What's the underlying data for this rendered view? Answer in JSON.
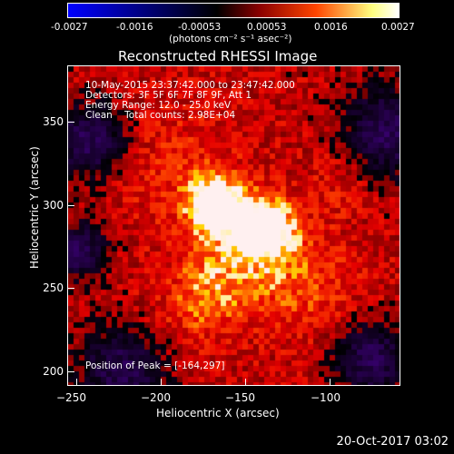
{
  "colorbar": {
    "ticks": [
      "-0.0027",
      "-0.0016",
      "-0.00053",
      "0.00053",
      "0.0016",
      "0.0027"
    ],
    "units": "(photons cm⁻² s⁻¹ asec⁻²)",
    "colors": [
      "#0000ff",
      "#000000",
      "#8b0000",
      "#ff4500",
      "#ffff80",
      "#ffffff"
    ]
  },
  "title": "Reconstructed RHESSI Image",
  "info": {
    "time_range": "10-May-2015 23:37:42.000 to 23:47:42.000",
    "detectors": "Detectors: 3F 5F 6F 7F 8F 9F, Att 1",
    "energy": "Energy Range: 12.0 - 25.0 keV",
    "clean": "Clean    Total counts: 2.98E+04",
    "peak": "Position of Peak = [-164,297]"
  },
  "axes": {
    "xlabel": "Heliocentric X (arcsec)",
    "ylabel": "Heliocentric Y (arcsec)",
    "xticks": [
      "−250",
      "−200",
      "−150",
      "−100"
    ],
    "yticks": [
      "350",
      "300",
      "250",
      "200"
    ]
  },
  "footer": "20-Oct-2017 03:02"
}
